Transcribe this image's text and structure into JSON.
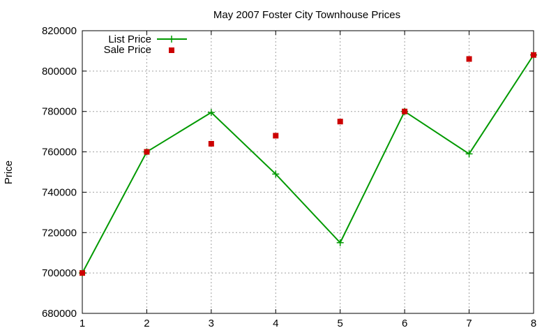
{
  "chart_data": {
    "type": "line",
    "title": "May 2007 Foster City Townhouse Prices",
    "xlabel": "",
    "ylabel": "Price",
    "xlim": [
      1,
      8
    ],
    "ylim": [
      680000,
      820000
    ],
    "x_ticks": [
      "1",
      "2",
      "3",
      "4",
      "5",
      "6",
      "7",
      "8"
    ],
    "y_ticks": [
      "680000",
      "700000",
      "720000",
      "740000",
      "760000",
      "780000",
      "800000",
      "820000"
    ],
    "grid": true,
    "legend_position": "top-left",
    "x": [
      1,
      2,
      3,
      4,
      5,
      6,
      7,
      8
    ],
    "series": [
      {
        "name": "List Price",
        "style": "line-with-plus-markers",
        "color": "#009900",
        "values": [
          700000,
          760000,
          779500,
          749000,
          715000,
          780000,
          759000,
          808000
        ]
      },
      {
        "name": "Sale Price",
        "style": "square-points",
        "color": "#cc0000",
        "values": [
          700000,
          760000,
          764000,
          768000,
          775000,
          780000,
          806000,
          808000
        ]
      }
    ]
  }
}
